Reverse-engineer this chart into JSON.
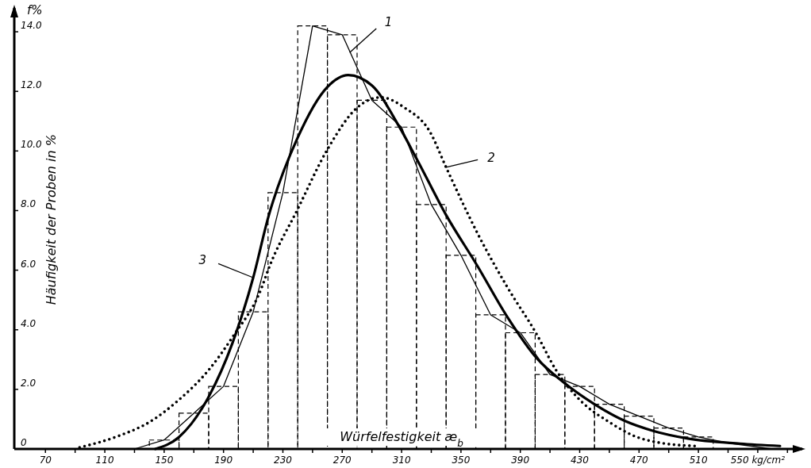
{
  "chart_data": {
    "type": "histogram",
    "xlabel": "Würfelfestigkeit  æ$_{b}$",
    "ylabel": "Häufigkeit der Proben in %",
    "annotations": [
      "f%",
      {
        "text": "1",
        "x": 275,
        "y": 13.3
      },
      {
        "text": "2",
        "x": 340,
        "y": 9.45
      },
      {
        "text": "3",
        "x": 210,
        "y": 5.75
      }
    ],
    "bins": [
      140,
      160,
      180,
      200,
      220,
      240,
      260,
      280,
      300,
      320,
      340,
      360,
      380,
      400,
      420,
      440,
      460,
      480,
      500,
      520
    ],
    "values": [
      0.3,
      1.2,
      2.1,
      4.6,
      8.6,
      14.2,
      13.9,
      11.7,
      10.8,
      8.2,
      6.5,
      4.5,
      3.9,
      2.5,
      2.1,
      1.5,
      1.1,
      0.7,
      0.4
    ],
    "color": "#000000",
    "series": [
      {
        "type": "line",
        "color": "#000000",
        "line_style": "solid",
        "x": [
          130,
          150,
          170,
          190,
          210,
          230,
          250,
          270,
          290,
          310,
          330,
          350,
          370,
          390,
          410,
          430,
          450,
          470,
          490,
          510,
          530,
          560
        ],
        "values": [
          0,
          0.3,
          1.2,
          2.1,
          4.6,
          8.6,
          14.2,
          13.9,
          11.7,
          10.8,
          8.2,
          6.5,
          4.5,
          3.9,
          2.5,
          2.1,
          1.5,
          1.1,
          0.7,
          0.4,
          0.2,
          0
        ]
      },
      {
        "type": "line",
        "color": "#000000",
        "line_style": "dotted",
        "x": [
          93,
          120,
          140,
          160,
          180,
          196,
          216,
          220,
          240,
          260,
          280,
          296,
          312,
          329,
          340,
          361,
          381,
          401,
          414,
          431,
          450,
          467,
          485,
          508
        ],
        "values": [
          0.05,
          0.45,
          0.9,
          1.65,
          2.65,
          3.75,
          5.45,
          6.0,
          8.05,
          10.05,
          11.45,
          11.8,
          11.45,
          10.65,
          9.45,
          7.25,
          5.45,
          3.85,
          2.65,
          1.6,
          0.9,
          0.43,
          0.2,
          0.1
        ]
      },
      {
        "type": "line",
        "color": "#000000",
        "line_style": "solid",
        "x": [
          144,
          160,
          180,
          196,
          210,
          220,
          240,
          260,
          274,
          290,
          308,
          320,
          340,
          361,
          381,
          401,
          420,
          440,
          460,
          480,
          503,
          538,
          565
        ],
        "values": [
          0,
          0.4,
          1.75,
          3.55,
          5.75,
          7.75,
          10.45,
          12.15,
          12.55,
          12.2,
          10.85,
          9.75,
          7.85,
          6.15,
          4.45,
          3.05,
          2.2,
          1.5,
          0.95,
          0.6,
          0.35,
          0.18,
          0.1
        ]
      }
    ],
    "xlim": [
      49,
      580
    ],
    "xticks": [
      70,
      {
        "value": 90,
        "label": null
      },
      110,
      {
        "value": 130,
        "label": null
      },
      150,
      {
        "value": 170,
        "label": null
      },
      190,
      {
        "value": 210,
        "label": null
      },
      230,
      {
        "value": 250,
        "label": null
      },
      270,
      {
        "value": 290,
        "label": null
      },
      310,
      {
        "value": 330,
        "label": null
      },
      350,
      {
        "value": 370,
        "label": null
      },
      390,
      {
        "value": 410,
        "label": null
      },
      430,
      {
        "value": 450,
        "label": null
      },
      470,
      {
        "value": 490,
        "label": null
      },
      510,
      {
        "value": 530,
        "label": null
      },
      {
        "value": 550,
        "label": "550 kg/cm²"
      },
      {
        "value": 570,
        "label": null
      }
    ],
    "ylim": [
      0,
      14.8
    ],
    "yticks": [
      0,
      {
        "value": 2,
        "label": "2.0"
      },
      {
        "value": 4,
        "label": "4.0"
      },
      {
        "value": 6,
        "label": "6.0"
      },
      {
        "value": 8,
        "label": "8.0"
      },
      {
        "value": 10,
        "label": "10.0"
      },
      {
        "value": 12,
        "label": "12.0"
      },
      {
        "value": 14,
        "label": "14.0"
      }
    ],
    "grid": false,
    "marker": "none"
  }
}
